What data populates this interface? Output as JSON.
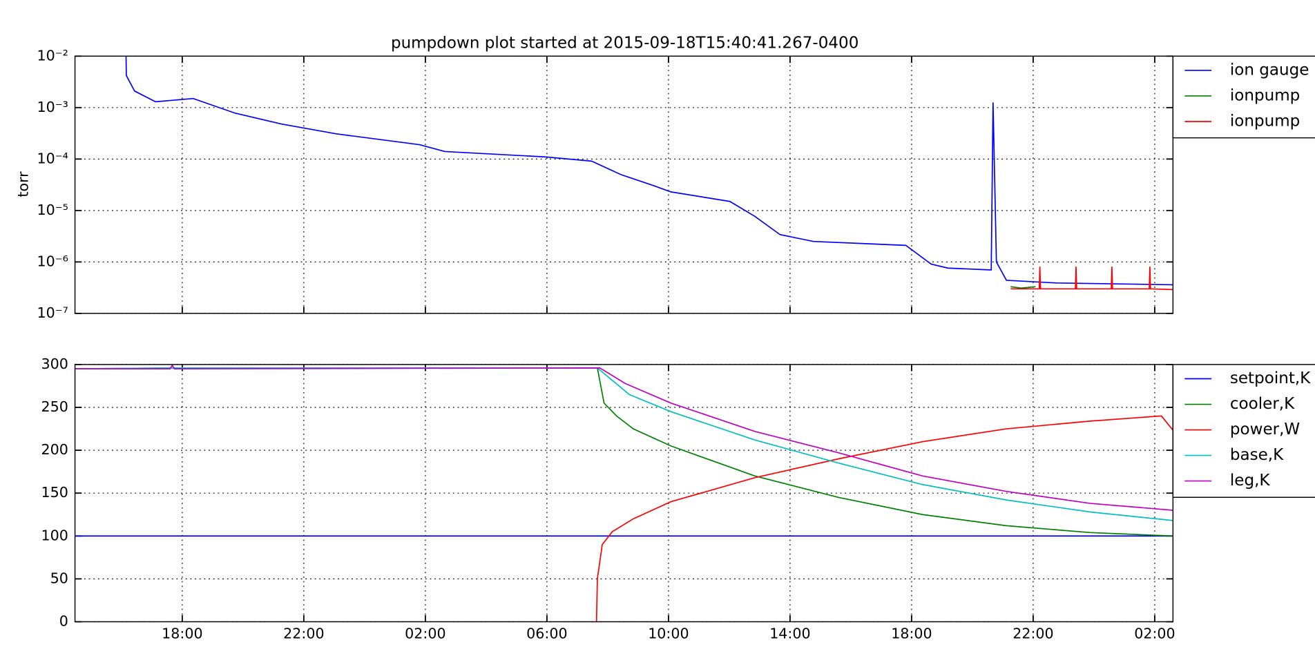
{
  "chart_data": [
    {
      "type": "line",
      "title": "pumpdown plot started at 2015-09-18T15:40:41.267-0400",
      "y_label": "torr",
      "log_y": true,
      "grid": true,
      "legend": "outside-right",
      "xlim": [
        14.47,
        50.6
      ],
      "ylim": [
        1e-07,
        0.01
      ],
      "yticks": [
        {
          "value": 1e-07,
          "label": "10⁻⁷"
        },
        {
          "value": 1e-06,
          "label": "10⁻⁶"
        },
        {
          "value": 1e-05,
          "label": "10⁻⁵"
        },
        {
          "value": 0.0001,
          "label": "10⁻⁴"
        },
        {
          "value": 0.001,
          "label": "10⁻³"
        },
        {
          "value": 0.01,
          "label": "10⁻²"
        }
      ],
      "series": [
        {
          "name": "ion gauge",
          "color": "#0000ff",
          "x": [
            16.15,
            16.16,
            16.43,
            17.12,
            18.36,
            19.74,
            21.26,
            23.05,
            25.81,
            26.64,
            29.95,
            31.47,
            32.43,
            33.54,
            34.08,
            36.02,
            36.84,
            37.67,
            38.77,
            41.81,
            42.64,
            43.19,
            44.57,
            44.62,
            44.68,
            44.79,
            45.12,
            46.77,
            50.61
          ],
          "values": [
            0.01,
            0.0042,
            0.0021,
            0.0013,
            0.0015,
            0.00078,
            0.00048,
            0.00031,
            0.00019,
            0.00014,
            0.00011,
            9.1e-05,
            5e-05,
            3e-05,
            2.3e-05,
            1.5e-05,
            7.7e-06,
            3.4e-06,
            2.5e-06,
            2.1e-06,
            9.1e-07,
            7.6e-07,
            7e-07,
            7e-07,
            0.00126,
            1e-06,
            4.4e-07,
            3.9e-07,
            3.6e-07
          ]
        },
        {
          "name": "ionpump",
          "color": "#008000",
          "x": [
            45.26,
            45.6,
            46.08
          ],
          "values": [
            3.3e-07,
            3.1e-07,
            3.3e-07
          ]
        },
        {
          "name": "ionpump",
          "color": "#ff0000",
          "x": [
            45.26,
            46.2,
            46.22,
            46.24,
            47.39,
            47.41,
            47.43,
            48.57,
            48.59,
            48.61,
            49.82,
            49.84,
            49.86,
            50.61
          ],
          "values": [
            3e-07,
            3e-07,
            8.1e-07,
            3e-07,
            3e-07,
            8.1e-07,
            3e-07,
            3e-07,
            8.1e-07,
            3e-07,
            3e-07,
            8.1e-07,
            3e-07,
            2.9e-07
          ]
        }
      ]
    },
    {
      "type": "line",
      "log_y": false,
      "grid": true,
      "legend": "outside-right",
      "xlim": [
        14.47,
        50.6
      ],
      "ylim": [
        0,
        300
      ],
      "xticks": [
        {
          "value": 18,
          "label": "18:00"
        },
        {
          "value": 22,
          "label": "22:00"
        },
        {
          "value": 26,
          "label": "02:00"
        },
        {
          "value": 30,
          "label": "06:00"
        },
        {
          "value": 34,
          "label": "10:00"
        },
        {
          "value": 38,
          "label": "14:00"
        },
        {
          "value": 42,
          "label": "18:00"
        },
        {
          "value": 46,
          "label": "22:00"
        },
        {
          "value": 50,
          "label": "02:00"
        }
      ],
      "yticks": [
        0,
        50,
        100,
        150,
        200,
        250,
        300
      ],
      "series": [
        {
          "name": "setpoint,K",
          "color": "#0000ff",
          "x": [
            14.47,
            50.61
          ],
          "values": [
            100,
            100
          ]
        },
        {
          "name": "cooler,K",
          "color": "#008000",
          "x": [
            14.47,
            17.67,
            31.66,
            31.88,
            32.29,
            32.84,
            34.08,
            36.84,
            39.6,
            42.36,
            45.12,
            47.88,
            50.61
          ],
          "values": [
            295,
            296,
            296,
            255,
            240,
            225,
            205,
            170,
            145,
            125,
            112,
            104,
            100
          ]
        },
        {
          "name": "power,W",
          "color": "#ff0000",
          "x": [
            31.63,
            31.66,
            31.82,
            32.15,
            32.84,
            34.08,
            36.84,
            39.6,
            42.36,
            45.12,
            47.88,
            50.22,
            50.61
          ],
          "values": [
            0,
            50,
            90,
            105,
            120,
            140,
            168,
            190,
            210,
            225,
            234,
            240,
            223
          ]
        },
        {
          "name": "base,K",
          "color": "#00bfbf",
          "x": [
            14.47,
            17.67,
            31.66,
            32.71,
            34.08,
            36.84,
            39.6,
            42.36,
            45.12,
            47.88,
            50.61
          ],
          "values": [
            295,
            296,
            296,
            265,
            245,
            212,
            185,
            160,
            142,
            128,
            118
          ]
        },
        {
          "name": "leg,K",
          "color": "#bf00bf",
          "x": [
            14.47,
            17.6,
            17.67,
            17.74,
            31.74,
            32.57,
            34.08,
            36.84,
            39.6,
            42.36,
            45.12,
            47.88,
            50.61
          ],
          "values": [
            295,
            295,
            299,
            295,
            296,
            278,
            255,
            222,
            197,
            170,
            152,
            138,
            130
          ]
        }
      ]
    }
  ]
}
